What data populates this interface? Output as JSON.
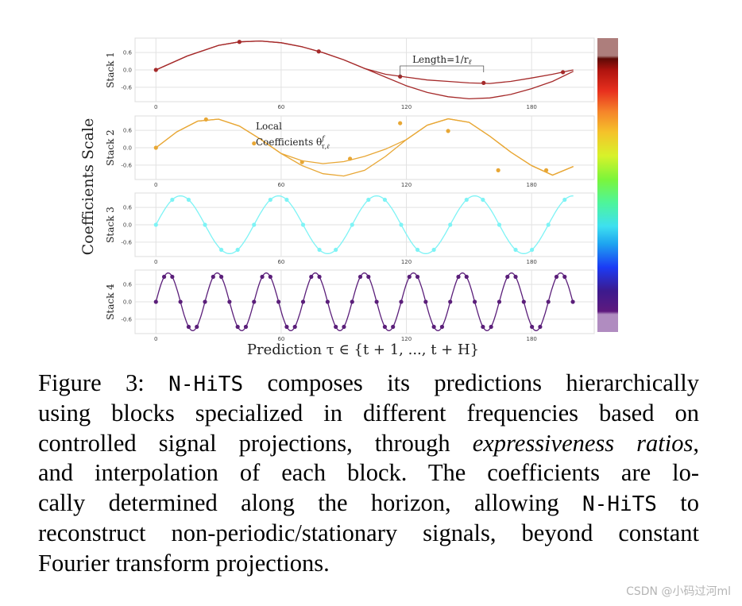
{
  "chart_data": {
    "type": "line",
    "ylabel_outer": "Coefficients Scale",
    "xlabel": "Prediction τ ∈ {t + 1, ..., t + H}",
    "xticks": [
      0,
      60,
      120,
      180
    ],
    "xlim": [
      -10,
      210
    ],
    "yticks": [
      0.6,
      0.0,
      -0.6
    ],
    "ylim": [
      -1.1,
      1.1
    ],
    "colormap": "rainbow",
    "stacks": [
      {
        "name": "Stack 1",
        "color": "#a52a2a",
        "series": [
          {
            "x": [
              0,
              15,
              30,
              40,
              50,
              60,
              70,
              80,
              90,
              100,
              110,
              120,
              130,
              140,
              150,
              160,
              170,
              180,
              190,
              200
            ],
            "y": [
              0.0,
              0.48,
              0.85,
              0.97,
              1.0,
              0.94,
              0.8,
              0.6,
              0.35,
              0.05,
              -0.25,
              -0.55,
              -0.78,
              -0.93,
              -1.0,
              -0.97,
              -0.85,
              -0.65,
              -0.4,
              -0.05
            ]
          },
          {
            "x": [
              0,
              15,
              30,
              40,
              50,
              60,
              70,
              80,
              90,
              100,
              110,
              120,
              130,
              140,
              150,
              160,
              170,
              180,
              190,
              200
            ],
            "y": [
              0.0,
              0.48,
              0.85,
              0.97,
              1.0,
              0.94,
              0.8,
              0.6,
              0.35,
              0.05,
              -0.15,
              -0.25,
              -0.35,
              -0.4,
              -0.45,
              -0.47,
              -0.4,
              -0.28,
              -0.15,
              0.0
            ]
          }
        ],
        "points": {
          "x": [
            0,
            40,
            78,
            117,
            157,
            195
          ],
          "y": [
            0.0,
            0.97,
            0.64,
            -0.23,
            -0.45,
            -0.08
          ]
        },
        "annotation": "Length=1/r_ℓ"
      },
      {
        "name": "Stack 2",
        "color": "#e8a735",
        "series": [
          {
            "x": [
              0,
              10,
              20,
              30,
              40,
              50,
              60,
              70,
              80,
              90,
              100,
              110,
              120,
              130,
              140,
              150,
              160,
              170,
              180,
              190,
              200
            ],
            "y": [
              0.0,
              0.55,
              0.92,
              0.99,
              0.75,
              0.3,
              -0.2,
              -0.62,
              -0.9,
              -0.98,
              -0.78,
              -0.3,
              0.28,
              0.78,
              1.0,
              0.88,
              0.4,
              -0.15,
              -0.62,
              -0.95,
              -0.65
            ]
          },
          {
            "x": [
              0,
              10,
              20,
              30,
              40,
              50,
              60,
              70,
              80,
              90,
              100,
              110,
              120,
              130,
              140,
              150,
              160,
              170,
              180,
              190,
              200
            ],
            "y": [
              0.0,
              0.55,
              0.92,
              0.99,
              0.75,
              0.3,
              -0.2,
              -0.45,
              -0.55,
              -0.48,
              -0.3,
              -0.05,
              0.28,
              0.78,
              1.0,
              0.88,
              0.4,
              -0.15,
              -0.62,
              -0.95,
              -0.65
            ]
          }
        ],
        "points": {
          "x": [
            0,
            24,
            47,
            70,
            93,
            117,
            140,
            164,
            187
          ],
          "y": [
            0.0,
            0.98,
            0.15,
            -0.5,
            -0.38,
            0.85,
            0.58,
            -0.78,
            -0.78
          ]
        },
        "annotation": "Local Coefficients θ^f_{τ,ℓ}"
      },
      {
        "name": "Stack 3",
        "color": "#7ef3f5",
        "period": 47,
        "points": {
          "x": [
            0,
            15,
            31,
            46,
            62,
            78,
            93,
            109,
            125,
            140,
            156,
            172,
            187
          ],
          "y": [
            0.0,
            0.88,
            -0.65,
            -0.38,
            1.0,
            -0.38,
            -0.65,
            0.92,
            0.0,
            -0.9,
            0.6,
            0.38,
            -1.0
          ]
        }
      },
      {
        "name": "Stack 4",
        "color": "#5b1f7a",
        "period": 23.5,
        "points": {
          "x": [
            0,
            4,
            8,
            12,
            16,
            20,
            24,
            28,
            32,
            36
          ],
          "y": [
            0.0,
            0.82,
            0.92,
            0.3,
            -0.5,
            -0.95,
            -0.72,
            0.05,
            0.78,
            0.98
          ]
        }
      }
    ]
  },
  "caption": {
    "lines": [
      [
        "Figure 3: ",
        {
          "mono": "N-HiTS"
        },
        " composes its predictions hierarchically"
      ],
      [
        "using blocks specialized in different frequencies based on"
      ],
      [
        "controlled signal projections, through ",
        {
          "it": "expressiveness ratios"
        },
        ","
      ],
      [
        "and interpolation of each block. The coefficients are lo-"
      ],
      [
        "cally determined along the horizon, allowing ",
        {
          "mono": "N-HiTS"
        },
        " to"
      ],
      [
        "reconstruct non-periodic/stationary signals, beyond constant"
      ],
      [
        "Fourier transform projections."
      ]
    ]
  },
  "watermark": "CSDN @小码过河ml"
}
